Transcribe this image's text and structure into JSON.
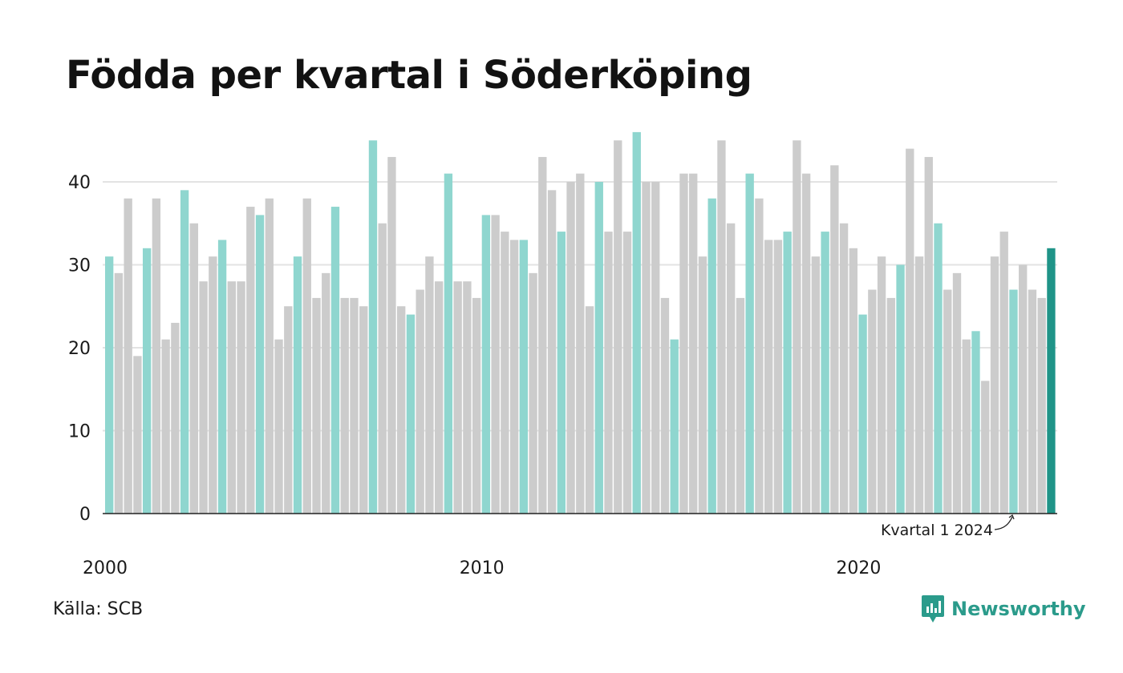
{
  "title": "Födda per kvartal i Söderköping",
  "source": "Källa: SCB",
  "brand": "Newsworthy",
  "colors": {
    "first_quarter": "#8fd6cf",
    "other_quarter": "#cccccc",
    "latest": "#1f9488",
    "grid": "#e3e3e3",
    "axis": "#222222",
    "brand": "#2b9b8b"
  },
  "chart_data": {
    "type": "bar",
    "title": "Födda per kvartal i Söderköping",
    "xlabel": "",
    "ylabel": "",
    "start_year": 2000,
    "ylim": [
      0,
      46
    ],
    "yticks": [
      0,
      10,
      20,
      30,
      40
    ],
    "xtick_labels": [
      "2000",
      "2010",
      "2020"
    ],
    "grid": true,
    "values": [
      31,
      29,
      38,
      19,
      32,
      38,
      21,
      23,
      39,
      35,
      28,
      31,
      33,
      28,
      28,
      37,
      36,
      38,
      21,
      25,
      31,
      38,
      26,
      29,
      37,
      26,
      26,
      25,
      45,
      35,
      43,
      25,
      24,
      27,
      31,
      28,
      41,
      28,
      28,
      26,
      36,
      36,
      34,
      33,
      33,
      29,
      43,
      39,
      34,
      40,
      41,
      25,
      40,
      34,
      45,
      34,
      46,
      40,
      40,
      26,
      21,
      41,
      41,
      31,
      38,
      45,
      35,
      26,
      41,
      38,
      33,
      33,
      34,
      45,
      41,
      31,
      34,
      42,
      35,
      32,
      24,
      27,
      31,
      26,
      30,
      44,
      31,
      43,
      35,
      27,
      29,
      21,
      22,
      16,
      31,
      34,
      27,
      30,
      27,
      26,
      32
    ],
    "annotation": "Kvartal 1 2024"
  }
}
